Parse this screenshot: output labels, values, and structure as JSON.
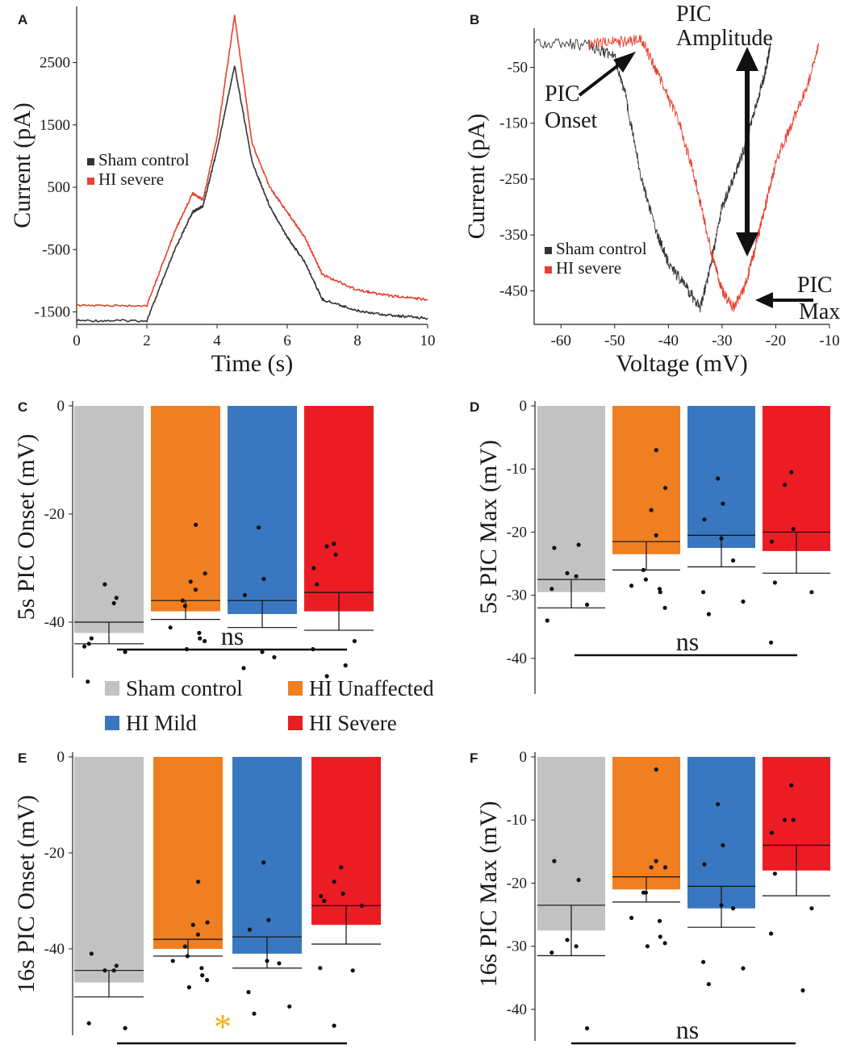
{
  "colors": {
    "sham": "#c2c2c2",
    "unaffected": "#f07f21",
    "mild": "#3a77c1",
    "severe": "#ec1c24",
    "trace_sham": "#333333",
    "trace_severe": "#e8412e",
    "asterisk": "#f5b016"
  },
  "chart_data": [
    {
      "panel": "A",
      "type": "line",
      "xlabel": "Time (s)",
      "ylabel": "Current (pA)",
      "xticks": [
        "0",
        "2",
        "4",
        "6",
        "8",
        "10"
      ],
      "yticks": [
        "2500",
        "1500",
        "500",
        "-500",
        "-1500"
      ],
      "xlim": [
        0,
        10
      ],
      "ylim": [
        -1700,
        3400
      ],
      "legend": [
        "Sham control",
        "HI severe"
      ],
      "series": [
        {
          "name": "Sham control",
          "x": [
            0,
            2,
            2.8,
            3.3,
            3.6,
            4.0,
            4.5,
            5.0,
            5.5,
            6.0,
            6.5,
            7.0,
            8.0,
            9.0,
            10.0
          ],
          "y": [
            -1640,
            -1640,
            -500,
            100,
            200,
            1100,
            2450,
            900,
            200,
            -300,
            -700,
            -1300,
            -1480,
            -1560,
            -1600
          ]
        },
        {
          "name": "HI severe",
          "x": [
            0,
            2,
            2.8,
            3.3,
            3.6,
            4.0,
            4.5,
            5.0,
            5.5,
            6.0,
            6.5,
            7.0,
            8.0,
            9.0,
            10.0
          ],
          "y": [
            -1400,
            -1400,
            -200,
            400,
            300,
            1300,
            3250,
            1200,
            500,
            100,
            -300,
            -900,
            -1150,
            -1250,
            -1300
          ]
        }
      ]
    },
    {
      "panel": "B",
      "type": "line",
      "xlabel": "Voltage (mV)",
      "ylabel": "Current (pA)",
      "xticks": [
        "-60",
        "-50",
        "-40",
        "-30",
        "-20",
        "-10"
      ],
      "yticks": [
        "-50",
        "-150",
        "-250",
        "-350",
        "-450"
      ],
      "xlim": [
        -65,
        -10
      ],
      "ylim": [
        -510,
        20
      ],
      "legend": [
        "Sham control",
        "HI severe"
      ],
      "annotations": [
        "PIC Amplitude",
        "PIC Onset",
        "PIC Max"
      ],
      "annotation_lines": {
        "amplitude": [
          "PIC",
          "Amplitude"
        ],
        "onset": [
          "PIC",
          "Onset"
        ],
        "max": [
          "PIC",
          "Max"
        ]
      },
      "series": [
        {
          "name": "Sham control",
          "x": [
            -65,
            -55,
            -50,
            -48,
            -45,
            -42,
            -40,
            -37,
            -34,
            -32,
            -30,
            -28,
            -26,
            -24,
            -22,
            -21
          ],
          "y": [
            -5,
            -10,
            -30,
            -100,
            -250,
            -350,
            -400,
            -440,
            -480,
            -400,
            -300,
            -250,
            -200,
            -130,
            -60,
            -10
          ]
        },
        {
          "name": "HI severe",
          "x": [
            -55,
            -50,
            -45,
            -42,
            -38,
            -35,
            -32,
            -30,
            -28,
            -26,
            -24,
            -22,
            -20,
            -17,
            -14,
            -12
          ],
          "y": [
            -10,
            -5,
            0,
            -60,
            -150,
            -250,
            -380,
            -450,
            -480,
            -450,
            -380,
            -300,
            -220,
            -150,
            -80,
            -10
          ]
        }
      ]
    },
    {
      "panel": "C",
      "type": "bar",
      "ylabel": "5s PIC Onset (mV)",
      "ylim": [
        -50,
        0
      ],
      "yticks": [
        "0",
        "-20",
        "-40"
      ],
      "categories": [
        "Sham control",
        "HI Unaffected",
        "HI Mild",
        "HI Severe"
      ],
      "values": [
        -40,
        -36,
        -36,
        -34.5
      ],
      "bar_bottoms": [
        -42,
        -38,
        -38.5,
        -38
      ],
      "sem": [
        [
          -40,
          -44
        ],
        [
          -36,
          -39.5
        ],
        [
          -36,
          -41
        ],
        [
          -34.5,
          -41.5
        ]
      ],
      "points": [
        [
          -43,
          -35.5,
          -33,
          -36.5,
          -44,
          -45.5,
          -44.5,
          -51
        ],
        [
          -22,
          -31,
          -32.5,
          -34,
          -36,
          -37,
          -41,
          -42,
          -43,
          -43.5,
          -45
        ],
        [
          -22.5,
          -32,
          -35,
          -45.5,
          -46.5,
          -48.5
        ],
        [
          -25.5,
          -26,
          -27.5,
          -30,
          -33,
          -43.5,
          -45,
          -48,
          -50
        ]
      ],
      "significance": "ns"
    },
    {
      "panel": "D",
      "type": "bar",
      "ylabel": "5s PIC Max (mV)",
      "ylim": [
        -45,
        0
      ],
      "yticks": [
        "0",
        "-10",
        "-20",
        "-30",
        "-40"
      ],
      "categories": [
        "Sham control",
        "HI Unaffected",
        "HI Mild",
        "HI Severe"
      ],
      "values": [
        -27.5,
        -21.5,
        -20.5,
        -20
      ],
      "bar_bottoms": [
        -29.5,
        -23.5,
        -22.5,
        -23
      ],
      "sem": [
        [
          -27.5,
          -32
        ],
        [
          -21.5,
          -26
        ],
        [
          -20.5,
          -25.5
        ],
        [
          -20,
          -26.5
        ]
      ],
      "points": [
        [
          -22.5,
          -22,
          -26.5,
          -27,
          -29,
          -31.5,
          -34
        ],
        [
          -7,
          -13,
          -16.5,
          -20.5,
          -26,
          -27.5,
          -28.5,
          -29,
          -29.5,
          -32
        ],
        [
          -11.5,
          -15.5,
          -18,
          -21,
          -24.5,
          -29.5,
          -31,
          -33
        ],
        [
          -10.5,
          -12.5,
          -19.5,
          -21.5,
          -28,
          -29.5,
          -37.5
        ]
      ],
      "significance": "ns"
    },
    {
      "panel": "E",
      "type": "bar",
      "ylabel": "16s PIC Onset (mV)",
      "ylim": [
        -58,
        0
      ],
      "yticks": [
        "0",
        "-20",
        "-40"
      ],
      "categories": [
        "Sham control",
        "HI Unaffected",
        "HI Mild",
        "HI Severe"
      ],
      "values": [
        -44.5,
        -38,
        -37.5,
        -31
      ],
      "bar_bottoms": [
        -47,
        -40,
        -41,
        -35
      ],
      "sem": [
        [
          -44.5,
          -50
        ],
        [
          -38,
          -41.5
        ],
        [
          -37.5,
          -44
        ],
        [
          -31,
          -39
        ]
      ],
      "points": [
        [
          -41,
          -43.5,
          -44.5,
          -44.5,
          -55.5,
          -56.5
        ],
        [
          -26,
          -34.5,
          -35,
          -37,
          -39.5,
          -41.5,
          -42.5,
          -44,
          -45.5,
          -46.5,
          -48
        ],
        [
          -22,
          -34,
          -36,
          -42.5,
          -43,
          -49,
          -52,
          -53.5
        ],
        [
          -23,
          -26,
          -28.5,
          -29,
          -30,
          -31,
          -44,
          -44.5,
          -56
        ]
      ],
      "significance": "*"
    },
    {
      "panel": "F",
      "type": "bar",
      "ylabel": "16s PIC Max (mV)",
      "ylim": [
        -45,
        0
      ],
      "yticks": [
        "0",
        "-10",
        "-20",
        "-30",
        "-40"
      ],
      "categories": [
        "Sham control",
        "HI Unaffected",
        "HI Mild",
        "HI Severe"
      ],
      "values": [
        -23.5,
        -19,
        -20.5,
        -14
      ],
      "bar_bottoms": [
        -27.5,
        -21,
        -24,
        -18
      ],
      "sem": [
        [
          -23.5,
          -31.5
        ],
        [
          -19,
          -23
        ],
        [
          -20.5,
          -27
        ],
        [
          -14,
          -22
        ]
      ],
      "points": [
        [
          -16.5,
          -19.5,
          -29,
          -30,
          -31,
          -43
        ],
        [
          -2,
          -17.5,
          -17.5,
          -16.5,
          -21.5,
          -21.5,
          -25.5,
          -26,
          -28.5,
          -29.5,
          -30
        ],
        [
          -7.5,
          -14,
          -17,
          -23.5,
          -24,
          -32.5,
          -33.5,
          -36
        ],
        [
          -4.5,
          -10,
          -10,
          -12,
          -18.5,
          -24,
          -28,
          -37
        ]
      ],
      "significance": "ns"
    }
  ],
  "legend": {
    "items": [
      {
        "label": "Sham control",
        "color_key": "sham"
      },
      {
        "label": "HI Unaffected",
        "color_key": "unaffected"
      },
      {
        "label": "HI Mild",
        "color_key": "mild"
      },
      {
        "label": "HI Severe",
        "color_key": "severe"
      }
    ]
  }
}
